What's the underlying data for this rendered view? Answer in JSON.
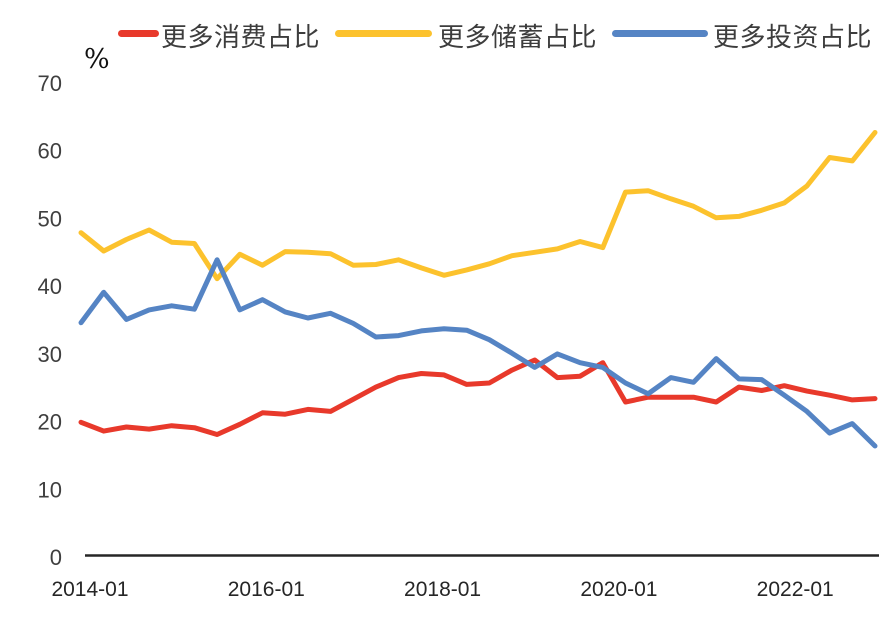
{
  "chart_data": {
    "type": "line",
    "title": "",
    "unit_label": "%",
    "legend_position": "top",
    "grid": false,
    "background": "#ffffff",
    "axis_color": "#262626",
    "tick_label_color": "#3f3f3f",
    "ylim": [
      0,
      70
    ],
    "y_ticks": [
      0,
      10,
      20,
      30,
      40,
      50,
      60,
      70
    ],
    "x_tick_labels": [
      "2014-01",
      "2016-01",
      "2018-01",
      "2020-01",
      "2022-01"
    ],
    "x": [
      "2014Q1",
      "2014Q2",
      "2014Q3",
      "2014Q4",
      "2015Q1",
      "2015Q2",
      "2015Q3",
      "2015Q4",
      "2016Q1",
      "2016Q2",
      "2016Q3",
      "2016Q4",
      "2017Q1",
      "2017Q2",
      "2017Q3",
      "2017Q4",
      "2018Q1",
      "2018Q2",
      "2018Q3",
      "2018Q4",
      "2019Q1",
      "2019Q2",
      "2019Q3",
      "2019Q4",
      "2020Q1",
      "2020Q2",
      "2020Q3",
      "2020Q4",
      "2021Q1",
      "2021Q2",
      "2021Q3",
      "2021Q4",
      "2022Q1",
      "2022Q2",
      "2022Q3",
      "2022Q4"
    ],
    "series": [
      {
        "name": "更多消费占比",
        "color": "#e8392b",
        "values": [
          19.6,
          18.3,
          18.9,
          18.6,
          19.1,
          18.8,
          17.8,
          19.3,
          21.0,
          20.8,
          21.5,
          21.2,
          23.0,
          24.8,
          26.2,
          26.8,
          26.6,
          25.2,
          25.4,
          27.3,
          28.8,
          26.2,
          26.4,
          28.4,
          22.6,
          23.3,
          23.3,
          23.3,
          22.6,
          24.8,
          24.3,
          25.0,
          24.2,
          23.6,
          22.9,
          23.1
        ]
      },
      {
        "name": "更多储蓄占比",
        "color": "#fcc22d",
        "values": [
          47.6,
          44.9,
          46.6,
          48.0,
          46.2,
          46.0,
          40.8,
          44.4,
          42.8,
          44.8,
          44.7,
          44.5,
          42.8,
          42.9,
          43.6,
          42.4,
          41.3,
          42.1,
          43.0,
          44.2,
          44.7,
          45.2,
          46.3,
          45.4,
          53.6,
          53.8,
          52.6,
          51.5,
          49.8,
          50.0,
          50.9,
          52.0,
          54.5,
          58.7,
          58.2,
          62.4
        ]
      },
      {
        "name": "更多投资占比",
        "color": "#5584c4",
        "values": [
          34.3,
          38.8,
          34.8,
          36.2,
          36.8,
          36.3,
          43.6,
          36.2,
          37.7,
          35.9,
          35.0,
          35.7,
          34.2,
          32.2,
          32.4,
          33.1,
          33.4,
          33.2,
          31.8,
          29.8,
          27.7,
          29.7,
          28.4,
          27.7,
          25.4,
          23.8,
          26.2,
          25.5,
          29.0,
          26.0,
          25.9,
          23.6,
          21.2,
          18.0,
          19.4,
          16.1
        ]
      }
    ]
  }
}
